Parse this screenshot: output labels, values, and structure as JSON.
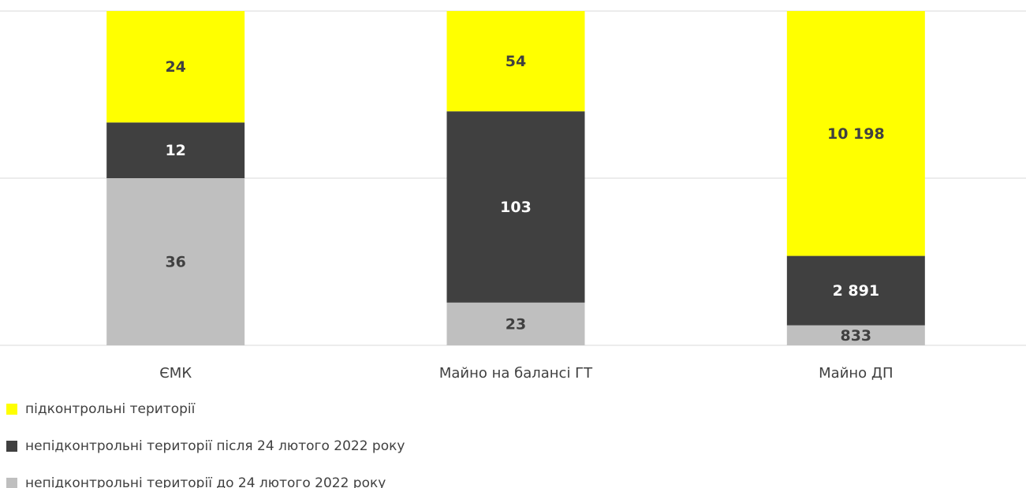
{
  "chart_data": {
    "type": "bar",
    "stacking": "percent",
    "categories": [
      "ЄМК",
      "Майно на балансі ГТ",
      "Майно ДП"
    ],
    "series": [
      {
        "name": "підконтрольні території",
        "color": "#ffff00",
        "label_color": "#404040",
        "values": [
          24,
          54,
          10198
        ],
        "value_labels": [
          "24",
          "54",
          "10 198"
        ]
      },
      {
        "name": "непідконтрольні території після 24 лютого 2022 року",
        "color": "#404040",
        "label_color": "#ffffff",
        "values": [
          12,
          103,
          2891
        ],
        "value_labels": [
          "12",
          "103",
          "2 891"
        ]
      },
      {
        "name": "непідконтрольні території до 24 лютого 2022 року",
        "color": "#bfbfbf",
        "label_color": "#404040",
        "values": [
          36,
          23,
          833
        ]
      }
    ],
    "ylim": [
      0,
      100
    ],
    "gridlines": [
      0,
      50,
      100
    ],
    "grid": true,
    "legend": "bottom-left"
  }
}
